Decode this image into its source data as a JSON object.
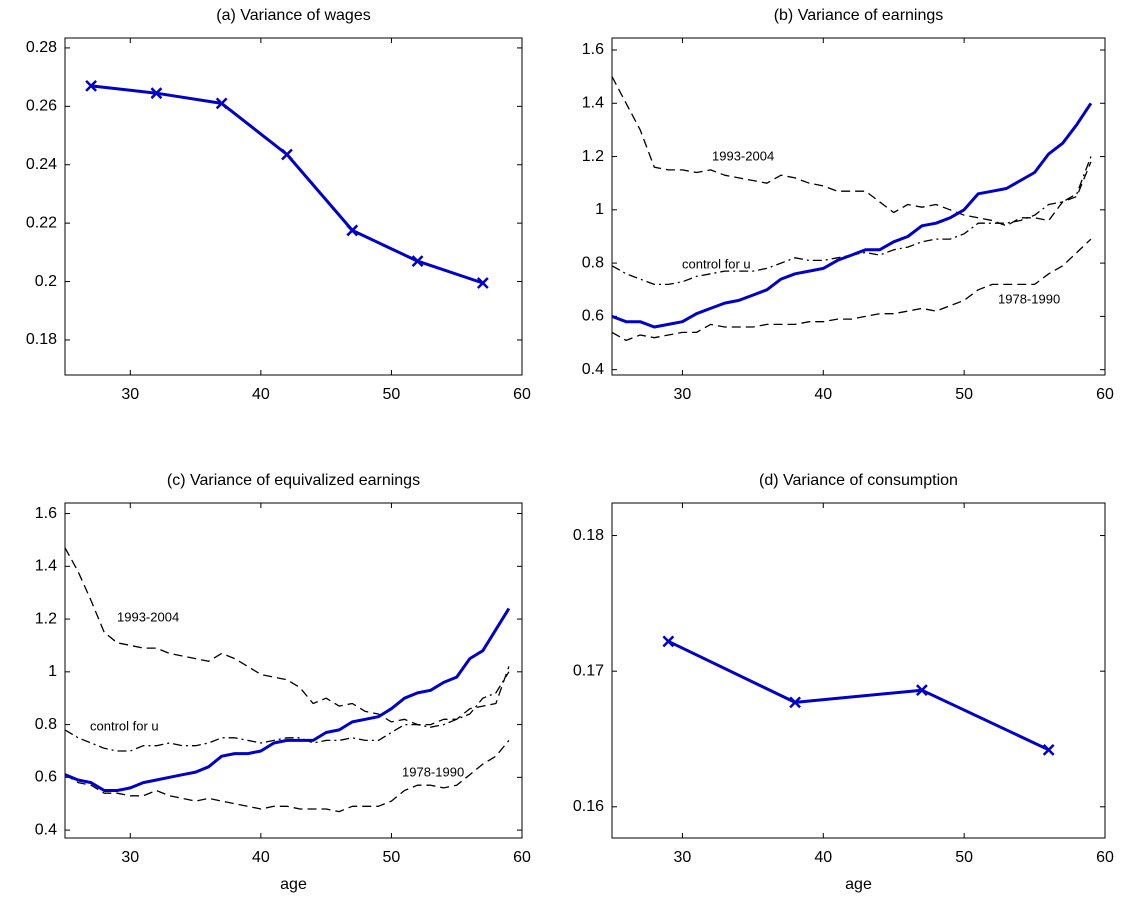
{
  "chart_data": [
    {
      "type": "line",
      "title": "(a) Variance of wages",
      "x": [
        27,
        32,
        37,
        42,
        47,
        52,
        57
      ],
      "xlim": [
        25,
        60
      ],
      "ylim": [
        0.168,
        0.2834
      ],
      "xticks": [
        30,
        40,
        50,
        60
      ],
      "yticks": [
        0.18,
        0.2,
        0.22,
        0.24,
        0.26,
        0.28
      ],
      "series": [
        {
          "color": "#0000c8",
          "marker": "x",
          "dash": "solid",
          "values": [
            0.267,
            0.2645,
            0.261,
            0.2435,
            0.2175,
            0.207,
            0.1995
          ]
        }
      ]
    },
    {
      "type": "line",
      "title": "(b) Variance of earnings",
      "x": [
        25,
        26,
        27,
        28,
        29,
        30,
        31,
        32,
        33,
        34,
        35,
        36,
        37,
        38,
        39,
        40,
        41,
        42,
        43,
        44,
        45,
        46,
        47,
        48,
        49,
        50,
        51,
        52,
        53,
        54,
        55,
        56,
        57,
        58,
        59
      ],
      "xlim": [
        25,
        60
      ],
      "ylim": [
        0.38,
        1.645
      ],
      "xticks": [
        30,
        40,
        50,
        60
      ],
      "yticks": [
        0.4,
        0.6,
        0.8,
        1,
        1.2,
        1.4,
        1.6
      ],
      "series": [
        {
          "color": "#0000c8",
          "dash": "solid",
          "values": [
            0.6,
            0.58,
            0.58,
            0.56,
            0.57,
            0.58,
            0.61,
            0.63,
            0.65,
            0.66,
            0.68,
            0.7,
            0.74,
            0.76,
            0.77,
            0.78,
            0.81,
            0.83,
            0.85,
            0.85,
            0.88,
            0.9,
            0.94,
            0.95,
            0.97,
            1.0,
            1.06,
            1.07,
            1.08,
            1.11,
            1.14,
            1.21,
            1.25,
            1.32,
            1.4
          ]
        },
        {
          "name": "1993-2004",
          "color": "#000000",
          "dash": "dashed",
          "values": [
            1.5,
            1.4,
            1.3,
            1.16,
            1.15,
            1.15,
            1.14,
            1.15,
            1.13,
            1.12,
            1.11,
            1.1,
            1.13,
            1.12,
            1.1,
            1.09,
            1.07,
            1.07,
            1.07,
            1.03,
            0.99,
            1.02,
            1.01,
            1.02,
            1.0,
            0.98,
            0.97,
            0.96,
            0.94,
            0.97,
            0.97,
            0.96,
            1.03,
            1.05,
            1.18
          ]
        },
        {
          "name": "control for u",
          "color": "#000000",
          "dash": "dashdot",
          "values": [
            0.79,
            0.76,
            0.74,
            0.72,
            0.72,
            0.73,
            0.75,
            0.76,
            0.77,
            0.77,
            0.77,
            0.78,
            0.8,
            0.82,
            0.81,
            0.81,
            0.82,
            0.83,
            0.84,
            0.83,
            0.85,
            0.86,
            0.88,
            0.89,
            0.89,
            0.91,
            0.95,
            0.95,
            0.95,
            0.96,
            0.98,
            1.02,
            1.03,
            1.06,
            1.2
          ]
        },
        {
          "name": "1978-1990",
          "color": "#000000",
          "dash": "dashed",
          "values": [
            0.54,
            0.51,
            0.53,
            0.52,
            0.53,
            0.54,
            0.54,
            0.57,
            0.56,
            0.56,
            0.56,
            0.57,
            0.57,
            0.57,
            0.58,
            0.58,
            0.59,
            0.59,
            0.6,
            0.61,
            0.61,
            0.62,
            0.63,
            0.62,
            0.64,
            0.66,
            0.7,
            0.72,
            0.72,
            0.72,
            0.72,
            0.76,
            0.79,
            0.84,
            0.89
          ]
        }
      ]
    },
    {
      "type": "line",
      "title": "(c) Variance of equivalized earnings",
      "xlabel": "age",
      "x": [
        25,
        26,
        27,
        28,
        29,
        30,
        31,
        32,
        33,
        34,
        35,
        36,
        37,
        38,
        39,
        40,
        41,
        42,
        43,
        44,
        45,
        46,
        47,
        48,
        49,
        50,
        51,
        52,
        53,
        54,
        55,
        56,
        57,
        58,
        59
      ],
      "xlim": [
        25,
        60
      ],
      "ylim": [
        0.37,
        1.64
      ],
      "xticks": [
        30,
        40,
        50,
        60
      ],
      "yticks": [
        0.4,
        0.6,
        0.8,
        1,
        1.2,
        1.4,
        1.6
      ],
      "series": [
        {
          "color": "#0000c8",
          "dash": "solid",
          "values": [
            0.61,
            0.59,
            0.58,
            0.55,
            0.55,
            0.56,
            0.58,
            0.59,
            0.6,
            0.61,
            0.62,
            0.64,
            0.68,
            0.69,
            0.69,
            0.7,
            0.73,
            0.74,
            0.74,
            0.74,
            0.77,
            0.78,
            0.81,
            0.82,
            0.83,
            0.86,
            0.9,
            0.92,
            0.93,
            0.96,
            0.98,
            1.05,
            1.08,
            1.16,
            1.24
          ]
        },
        {
          "name": "1993-2004",
          "color": "#000000",
          "dash": "dashed",
          "values": [
            1.47,
            1.38,
            1.27,
            1.15,
            1.11,
            1.1,
            1.09,
            1.09,
            1.07,
            1.06,
            1.05,
            1.04,
            1.07,
            1.05,
            1.02,
            0.99,
            0.98,
            0.97,
            0.94,
            0.88,
            0.9,
            0.87,
            0.88,
            0.85,
            0.84,
            0.81,
            0.82,
            0.8,
            0.8,
            0.82,
            0.82,
            0.86,
            0.87,
            0.88,
            1.02
          ]
        },
        {
          "name": "control for u",
          "color": "#000000",
          "dash": "dashdot",
          "values": [
            0.78,
            0.75,
            0.73,
            0.71,
            0.7,
            0.7,
            0.72,
            0.72,
            0.73,
            0.72,
            0.72,
            0.73,
            0.75,
            0.75,
            0.74,
            0.73,
            0.74,
            0.75,
            0.75,
            0.73,
            0.74,
            0.74,
            0.75,
            0.74,
            0.74,
            0.77,
            0.8,
            0.8,
            0.79,
            0.8,
            0.82,
            0.84,
            0.9,
            0.92,
            1.0
          ]
        },
        {
          "name": "1978-1990",
          "color": "#000000",
          "dash": "dashed",
          "values": [
            0.61,
            0.58,
            0.57,
            0.54,
            0.54,
            0.53,
            0.53,
            0.55,
            0.53,
            0.52,
            0.51,
            0.52,
            0.51,
            0.5,
            0.49,
            0.48,
            0.49,
            0.49,
            0.48,
            0.48,
            0.48,
            0.47,
            0.49,
            0.49,
            0.49,
            0.51,
            0.55,
            0.57,
            0.57,
            0.56,
            0.57,
            0.61,
            0.65,
            0.68,
            0.74
          ]
        }
      ]
    },
    {
      "type": "line",
      "title": "(d) Variance of consumption",
      "xlabel": "age",
      "x": [
        29,
        38,
        47,
        56
      ],
      "xlim": [
        25,
        60
      ],
      "ylim": [
        0.1577,
        0.1824
      ],
      "xticks": [
        30,
        40,
        50,
        60
      ],
      "yticks": [
        0.16,
        0.17,
        0.18
      ],
      "series": [
        {
          "color": "#0000c8",
          "marker": "x",
          "dash": "solid",
          "values": [
            0.1722,
            0.1677,
            0.1686,
            0.1642
          ]
        }
      ]
    }
  ]
}
